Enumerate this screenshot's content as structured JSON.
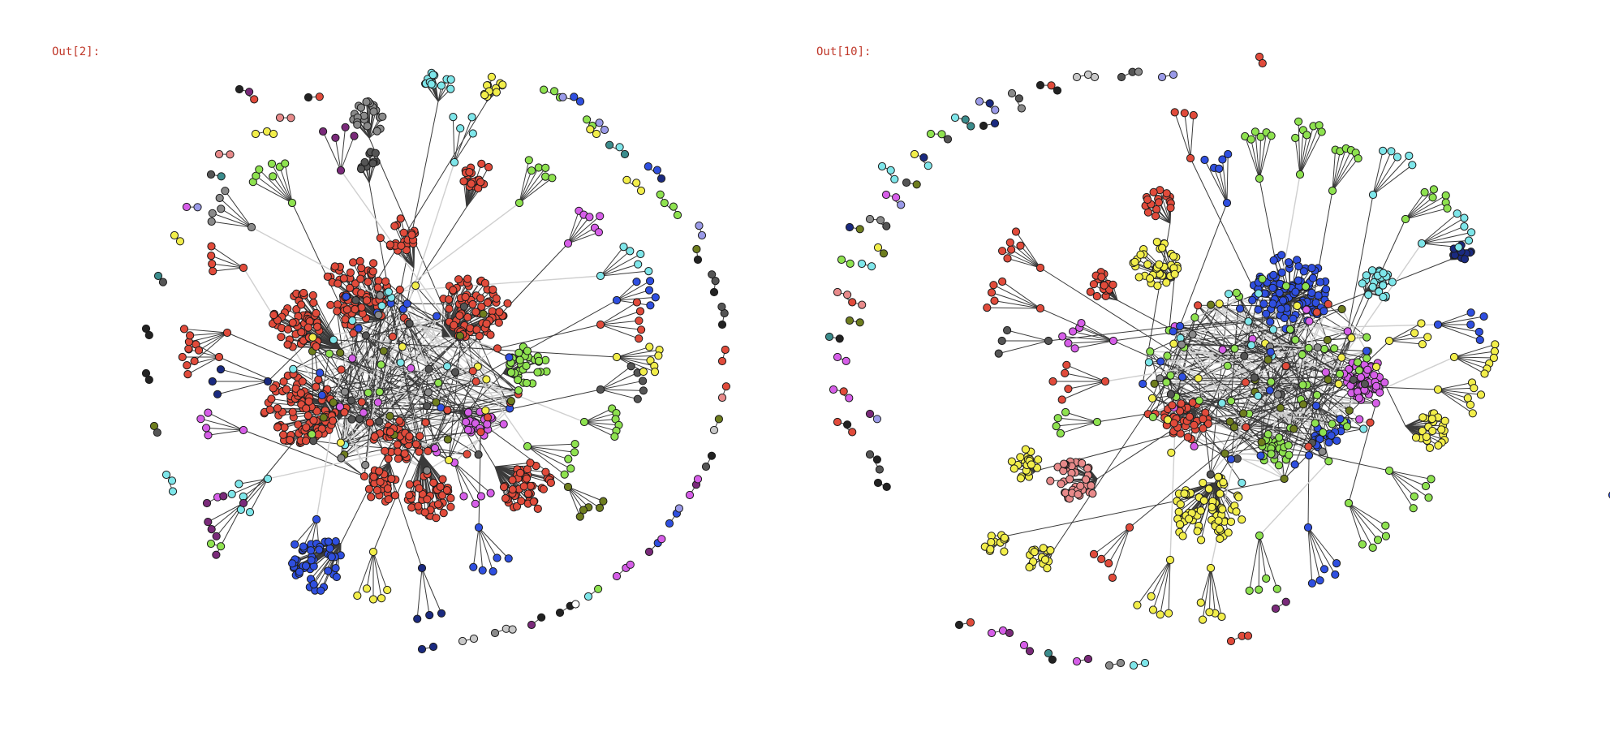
{
  "outputs": [
    {
      "label": "Out[2]:"
    },
    {
      "label": "Out[10]:"
    }
  ],
  "colors": {
    "background": "#ffffff",
    "prompt_text": "#c0392b",
    "edge": "#3a3a3a",
    "edge_light": "#cfcfcf",
    "node_stroke": "#1a1a1a",
    "palette": {
      "red": "#e14b3b",
      "green": "#8ee24f",
      "blue": "#2f4fe0",
      "yellow": "#f2ee4a",
      "magenta": "#d65ee8",
      "cyan": "#7ee6ea",
      "gray": "#8a8a8a",
      "darkgray": "#555555",
      "olive": "#6e7d1e",
      "navy": "#1a2a80",
      "pink": "#e88a8a",
      "purple": "#7a2a7a",
      "black": "#222222",
      "teal": "#3b8c8c",
      "lightgray": "#c8c8c8",
      "lavender": "#9a9ae8"
    }
  }
}
